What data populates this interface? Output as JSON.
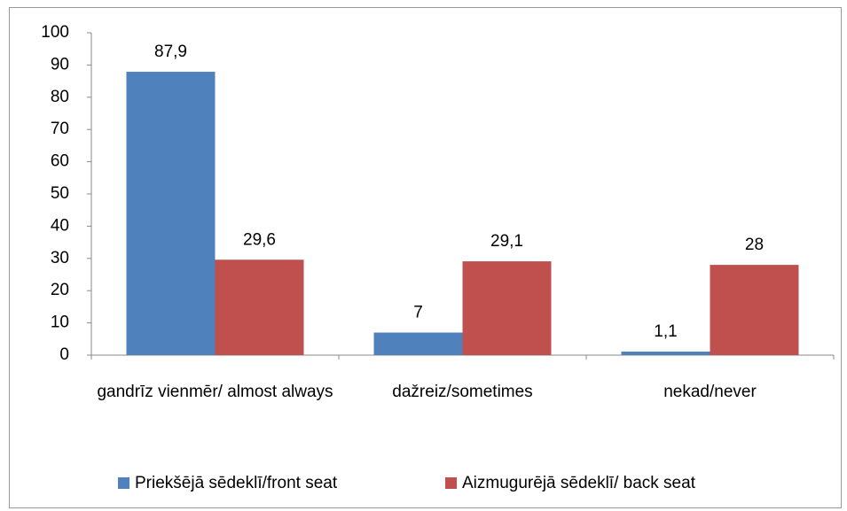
{
  "chart_data": {
    "type": "bar",
    "categories": [
      "gandrīz vienmēr/ almost always",
      "dažreiz/sometimes",
      "nekad/never"
    ],
    "series": [
      {
        "name": "Priekšējā sēdeklī/front seat",
        "color": "#4f81bd",
        "values": [
          87.9,
          7,
          1.1
        ],
        "value_labels": [
          "87,9",
          "7",
          "1,1"
        ]
      },
      {
        "name": "Aizmugurējā sēdeklī/ back seat",
        "color": "#c0504d",
        "values": [
          29.6,
          29.1,
          28
        ],
        "value_labels": [
          "29,6",
          "29,1",
          "28"
        ]
      }
    ],
    "ylim": [
      0,
      100
    ],
    "yticks": [
      0,
      10,
      20,
      30,
      40,
      50,
      60,
      70,
      80,
      90,
      100
    ],
    "grid": false,
    "legend": "bottom"
  }
}
